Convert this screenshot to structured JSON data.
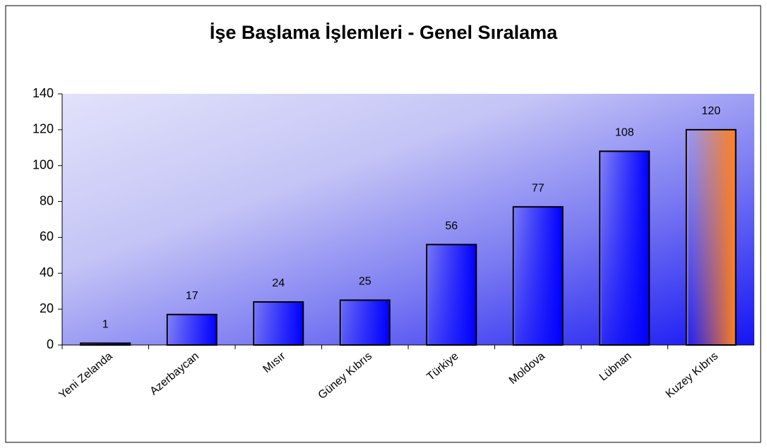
{
  "chart_data": {
    "type": "bar",
    "title": "İşe Başlama İşlemleri - Genel Sıralama",
    "categories": [
      "Yeni Zelanda",
      "Azerbaycan",
      "Mısır",
      "Güney Kıbrıs",
      "Türkiye",
      "Moldova",
      "Lübnan",
      "Kuzey Kıbrıs"
    ],
    "values": [
      1,
      17,
      24,
      25,
      56,
      77,
      108,
      120
    ],
    "colors": [
      "#0000ff",
      "#0000ff",
      "#0000ff",
      "#0000ff",
      "#0000ff",
      "#0000ff",
      "#0000ff",
      "#ff8020"
    ],
    "ylim": [
      0,
      140
    ],
    "yticks": [
      0,
      20,
      40,
      60,
      80,
      100,
      120,
      140
    ],
    "grid": false
  }
}
